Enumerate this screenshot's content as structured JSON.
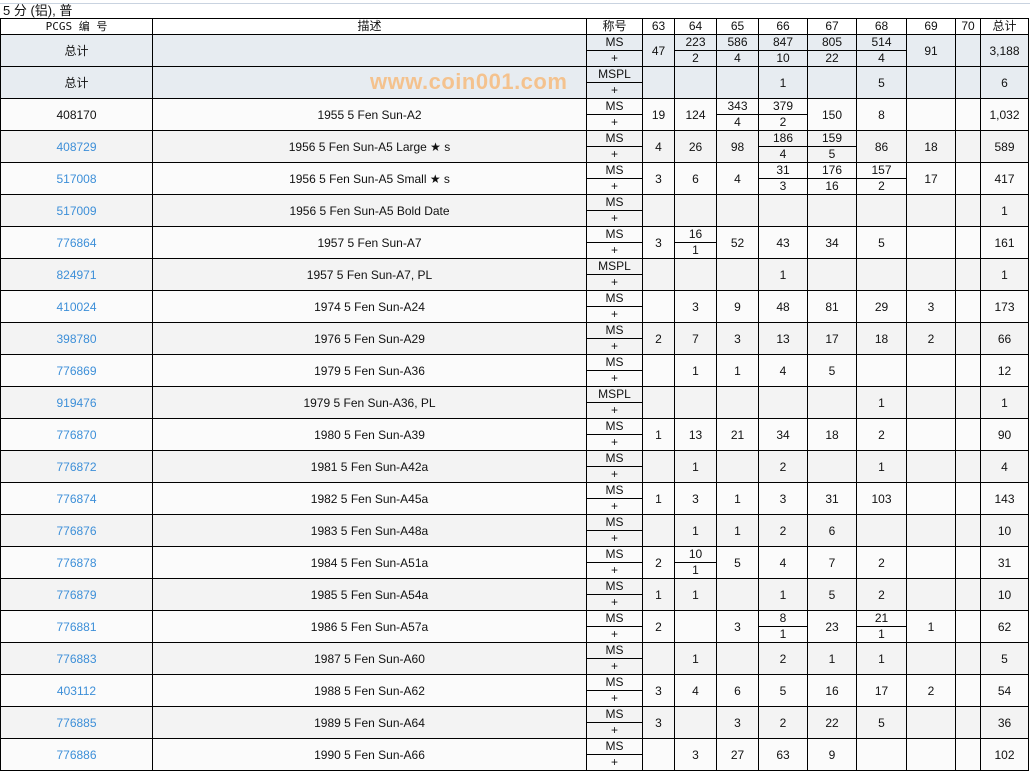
{
  "title": "5 分 (铝), 普",
  "headers": {
    "pcgs": "PCGS 编 号",
    "desc": "描述",
    "designation": "称号",
    "grades": [
      "63",
      "64",
      "65",
      "66",
      "67",
      "68",
      "69",
      "70"
    ],
    "total": "总计"
  },
  "plus_label": "+",
  "colors": {
    "link": "#3d8fd8",
    "total_bg": "#e7ecf1",
    "watermark": "#ffa03c"
  },
  "watermark": "www.coin001.com",
  "totals": [
    {
      "label": "总计",
      "designation": "MS",
      "grades": [
        [
          "47"
        ],
        [
          "223",
          "2"
        ],
        [
          "586",
          "4"
        ],
        [
          "847",
          "10"
        ],
        [
          "805",
          "22"
        ],
        [
          "514",
          "4"
        ],
        [
          "91"
        ],
        []
      ],
      "total": "3,188"
    },
    {
      "label": "总计",
      "designation": "MSPL",
      "grades": [
        [],
        [],
        [],
        [
          "1"
        ],
        [],
        [
          "5"
        ],
        [],
        []
      ],
      "total": "6"
    }
  ],
  "rows": [
    {
      "pcgs": "408170",
      "link": false,
      "desc": "1955 5 Fen Sun-A2",
      "designation": "MS",
      "grades": [
        [
          "19"
        ],
        [
          "124"
        ],
        [
          "343",
          "4"
        ],
        [
          "379",
          "2"
        ],
        [
          "150"
        ],
        [
          "8"
        ],
        [],
        []
      ],
      "total": "1,032"
    },
    {
      "pcgs": "408729",
      "link": true,
      "desc": "1956 5 Fen Sun-A5 Large ★ s",
      "designation": "MS",
      "grades": [
        [
          "4"
        ],
        [
          "26"
        ],
        [
          "98"
        ],
        [
          "186",
          "4"
        ],
        [
          "159",
          "5"
        ],
        [
          "86"
        ],
        [
          "18"
        ],
        []
      ],
      "total": "589"
    },
    {
      "pcgs": "517008",
      "link": true,
      "desc": "1956 5 Fen Sun-A5 Small ★ s",
      "designation": "MS",
      "grades": [
        [
          "3"
        ],
        [
          "6"
        ],
        [
          "4"
        ],
        [
          "31",
          "3"
        ],
        [
          "176",
          "16"
        ],
        [
          "157",
          "2"
        ],
        [
          "17"
        ],
        []
      ],
      "total": "417"
    },
    {
      "pcgs": "517009",
      "link": true,
      "desc": "1956 5 Fen Sun-A5 Bold Date",
      "designation": "MS",
      "grades": [
        [],
        [],
        [],
        [],
        [],
        [],
        [],
        []
      ],
      "total": "1"
    },
    {
      "pcgs": "776864",
      "link": true,
      "desc": "1957 5 Fen Sun-A7",
      "designation": "MS",
      "grades": [
        [
          "3"
        ],
        [
          "16",
          "1"
        ],
        [
          "52"
        ],
        [
          "43"
        ],
        [
          "34"
        ],
        [
          "5"
        ],
        [],
        []
      ],
      "total": "161"
    },
    {
      "pcgs": "824971",
      "link": true,
      "desc": "1957 5 Fen Sun-A7, PL",
      "designation": "MSPL",
      "grades": [
        [],
        [],
        [],
        [
          "1"
        ],
        [],
        [],
        [],
        []
      ],
      "total": "1"
    },
    {
      "pcgs": "410024",
      "link": true,
      "desc": "1974 5 Fen Sun-A24",
      "designation": "MS",
      "grades": [
        [],
        [
          "3"
        ],
        [
          "9"
        ],
        [
          "48"
        ],
        [
          "81"
        ],
        [
          "29"
        ],
        [
          "3"
        ],
        []
      ],
      "total": "173"
    },
    {
      "pcgs": "398780",
      "link": true,
      "desc": "1976 5 Fen Sun-A29",
      "designation": "MS",
      "grades": [
        [
          "2"
        ],
        [
          "7"
        ],
        [
          "3"
        ],
        [
          "13"
        ],
        [
          "17"
        ],
        [
          "18"
        ],
        [
          "2"
        ],
        []
      ],
      "total": "66"
    },
    {
      "pcgs": "776869",
      "link": true,
      "desc": "1979 5 Fen Sun-A36",
      "designation": "MS",
      "grades": [
        [],
        [
          "1"
        ],
        [
          "1"
        ],
        [
          "4"
        ],
        [
          "5"
        ],
        [],
        [],
        []
      ],
      "total": "12"
    },
    {
      "pcgs": "919476",
      "link": true,
      "desc": "1979 5 Fen Sun-A36, PL",
      "designation": "MSPL",
      "grades": [
        [],
        [],
        [],
        [],
        [],
        [
          "1"
        ],
        [],
        []
      ],
      "total": "1"
    },
    {
      "pcgs": "776870",
      "link": true,
      "desc": "1980 5 Fen Sun-A39",
      "designation": "MS",
      "grades": [
        [
          "1"
        ],
        [
          "13"
        ],
        [
          "21"
        ],
        [
          "34"
        ],
        [
          "18"
        ],
        [
          "2"
        ],
        [],
        []
      ],
      "total": "90"
    },
    {
      "pcgs": "776872",
      "link": true,
      "desc": "1981 5 Fen Sun-A42a",
      "designation": "MS",
      "grades": [
        [],
        [
          "1"
        ],
        [],
        [
          "2"
        ],
        [],
        [
          "1"
        ],
        [],
        []
      ],
      "total": "4"
    },
    {
      "pcgs": "776874",
      "link": true,
      "desc": "1982 5 Fen Sun-A45a",
      "designation": "MS",
      "grades": [
        [
          "1"
        ],
        [
          "3"
        ],
        [
          "1"
        ],
        [
          "3"
        ],
        [
          "31"
        ],
        [
          "103"
        ],
        [],
        []
      ],
      "total": "143"
    },
    {
      "pcgs": "776876",
      "link": true,
      "desc": "1983 5 Fen Sun-A48a",
      "designation": "MS",
      "grades": [
        [],
        [
          "1"
        ],
        [
          "1"
        ],
        [
          "2"
        ],
        [
          "6"
        ],
        [],
        [],
        []
      ],
      "total": "10"
    },
    {
      "pcgs": "776878",
      "link": true,
      "desc": "1984 5 Fen Sun-A51a",
      "designation": "MS",
      "grades": [
        [
          "2"
        ],
        [
          "10",
          "1"
        ],
        [
          "5"
        ],
        [
          "4"
        ],
        [
          "7"
        ],
        [
          "2"
        ],
        [],
        []
      ],
      "total": "31"
    },
    {
      "pcgs": "776879",
      "link": true,
      "desc": "1985 5 Fen Sun-A54a",
      "designation": "MS",
      "grades": [
        [
          "1"
        ],
        [
          "1"
        ],
        [],
        [
          "1"
        ],
        [
          "5"
        ],
        [
          "2"
        ],
        [],
        []
      ],
      "total": "10"
    },
    {
      "pcgs": "776881",
      "link": true,
      "desc": "1986 5 Fen Sun-A57a",
      "designation": "MS",
      "grades": [
        [
          "2"
        ],
        [],
        [
          "3"
        ],
        [
          "8",
          "1"
        ],
        [
          "23"
        ],
        [
          "21",
          "1"
        ],
        [
          "1"
        ],
        []
      ],
      "total": "62"
    },
    {
      "pcgs": "776883",
      "link": true,
      "desc": "1987 5 Fen Sun-A60",
      "designation": "MS",
      "grades": [
        [],
        [
          "1"
        ],
        [],
        [
          "2"
        ],
        [
          "1"
        ],
        [
          "1"
        ],
        [],
        []
      ],
      "total": "5"
    },
    {
      "pcgs": "403112",
      "link": true,
      "desc": "1988 5 Fen Sun-A62",
      "designation": "MS",
      "grades": [
        [
          "3"
        ],
        [
          "4"
        ],
        [
          "6"
        ],
        [
          "5"
        ],
        [
          "16"
        ],
        [
          "17"
        ],
        [
          "2"
        ],
        []
      ],
      "total": "54"
    },
    {
      "pcgs": "776885",
      "link": true,
      "desc": "1989 5 Fen Sun-A64",
      "designation": "MS",
      "grades": [
        [
          "3"
        ],
        [],
        [
          "3"
        ],
        [
          "2"
        ],
        [
          "22"
        ],
        [
          "5"
        ],
        [],
        []
      ],
      "total": "36"
    },
    {
      "pcgs": "776886",
      "link": true,
      "desc": "1990 5 Fen Sun-A66",
      "designation": "MS",
      "grades": [
        [],
        [
          "3"
        ],
        [
          "27"
        ],
        [
          "63"
        ],
        [
          "9"
        ],
        [],
        [],
        []
      ],
      "total": "102"
    }
  ]
}
